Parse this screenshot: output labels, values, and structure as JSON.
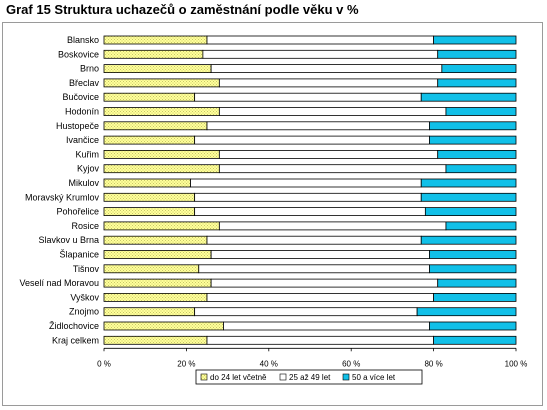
{
  "title": "Graf 15 Struktura uchazečů o zaměstnání podle věku v %",
  "colors": {
    "s1_fill": "#ffff99",
    "s1_dot": "#c8c86a",
    "s2_fill": "#ffffff",
    "s3_fill": "#11c0e8",
    "border": "#000000"
  },
  "chart_data": {
    "type": "bar",
    "orientation": "horizontal",
    "stacked": "percent",
    "categories": [
      "Blansko",
      "Boskovice",
      "Brno",
      "Břeclav",
      "Bučovice",
      "Hodonín",
      "Hustopeče",
      "Ivančice",
      "Kuřim",
      "Kyjov",
      "Mikulov",
      "Moravský Krumlov",
      "Pohořelice",
      "Rosice",
      "Slavkov u Brna",
      "Šlapanice",
      "Tišnov",
      "Veselí nad Moravou",
      "Vyškov",
      "Znojmo",
      "Židlochovice",
      "Kraj celkem"
    ],
    "series": [
      {
        "name": "do 24 let včetně",
        "values": [
          25,
          24,
          26,
          28,
          22,
          28,
          25,
          22,
          28,
          28,
          21,
          22,
          22,
          28,
          25,
          26,
          23,
          26,
          25,
          22,
          29,
          25
        ]
      },
      {
        "name": "25 až 49 let",
        "values": [
          55,
          57,
          56,
          53,
          55,
          55,
          54,
          57,
          53,
          55,
          56,
          55,
          56,
          55,
          52,
          53,
          56,
          55,
          55,
          54,
          50,
          55
        ]
      },
      {
        "name": "50 a více let",
        "values": [
          20,
          19,
          18,
          19,
          23,
          17,
          21,
          21,
          19,
          17,
          23,
          23,
          22,
          17,
          23,
          21,
          21,
          19,
          20,
          24,
          21,
          20
        ]
      }
    ],
    "xticks": [
      "0 %",
      "20 %",
      "40 %",
      "60 %",
      "80 %",
      "100 %"
    ],
    "xlim": [
      0,
      100
    ],
    "legend": "bottom",
    "grid": false
  }
}
